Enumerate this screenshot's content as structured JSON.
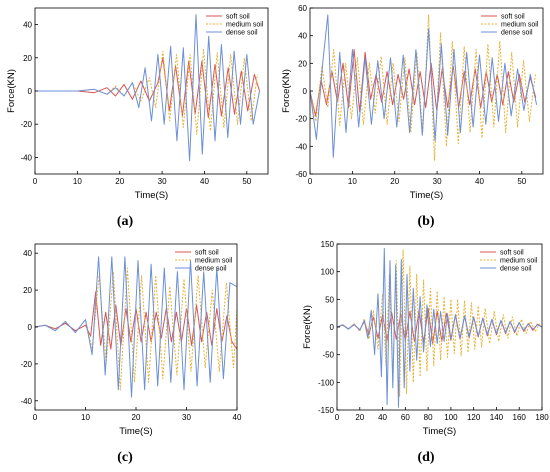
{
  "chart_data": [
    {
      "id": "a",
      "type": "line",
      "panel_label": "(a)",
      "xlabel": "Time(S)",
      "ylabel": "Force(KN)",
      "xlim": [
        0,
        55
      ],
      "ylim": [
        -50,
        50
      ],
      "xticks": [
        0,
        10,
        20,
        30,
        40,
        50
      ],
      "yticks": [
        -40,
        -20,
        0,
        20,
        40
      ],
      "legend_position": "top-right",
      "series": [
        {
          "name": "soft soil",
          "color": "#d9534f",
          "dash": "solid",
          "x": [
            0,
            10,
            14,
            17,
            19,
            21,
            23,
            25,
            27,
            29,
            30.2,
            31.7,
            33.2,
            34.8,
            36.3,
            37.8,
            39.4,
            40.9,
            42.5,
            44,
            45.6,
            47.1,
            48.7,
            50.2,
            51.8,
            53
          ],
          "y": [
            0,
            0,
            -1,
            2,
            -3,
            4,
            -5,
            6,
            -6,
            5,
            20,
            -12,
            15,
            -15,
            18,
            -14,
            18,
            -16,
            16,
            -15,
            14,
            -14,
            12,
            -12,
            10,
            0
          ]
        },
        {
          "name": "medium soil",
          "color": "#e8b030",
          "dash": "dashed",
          "x": [
            0,
            10,
            14,
            17,
            19,
            21,
            23,
            25,
            27,
            28.5,
            30.2,
            31.8,
            33.4,
            35,
            36.6,
            38.2,
            39.8,
            41.4,
            43,
            44.6,
            46.2,
            47.8,
            49.4,
            51,
            52.5
          ],
          "y": [
            0,
            0,
            1,
            -2,
            3,
            -3,
            5,
            -6,
            8,
            -10,
            24,
            -18,
            22,
            -22,
            22,
            -26,
            25,
            -24,
            23,
            -22,
            22,
            -20,
            20,
            -18,
            10
          ]
        },
        {
          "name": "dense soil",
          "color": "#6b8fd8",
          "dash": "solid",
          "x": [
            0,
            10,
            14,
            17,
            19,
            21,
            23,
            24.5,
            26,
            27.5,
            29,
            30.5,
            32,
            33.5,
            35,
            36.5,
            38,
            39.5,
            41,
            42.5,
            44,
            45.5,
            47,
            48.5,
            50,
            51.5,
            53
          ],
          "y": [
            0,
            0,
            1,
            -2,
            2,
            -3,
            5,
            -10,
            14,
            -18,
            22,
            -20,
            27,
            -30,
            26,
            -42,
            46,
            -38,
            33,
            -30,
            28,
            -28,
            24,
            -20,
            22,
            -20,
            0
          ]
        }
      ]
    },
    {
      "id": "b",
      "type": "line",
      "panel_label": "(b)",
      "xlabel": "Time(S)",
      "ylabel": "Force(KN)",
      "xlim": [
        0,
        55
      ],
      "ylim": [
        -60,
        60
      ],
      "xticks": [
        0,
        10,
        20,
        30,
        40,
        50
      ],
      "yticks": [
        -60,
        -40,
        -20,
        0,
        20,
        40,
        60
      ],
      "legend_position": "top-right",
      "series": [
        {
          "name": "soft soil",
          "color": "#d9534f",
          "dash": "solid",
          "x": [
            0,
            1.3,
            2.6,
            3.9,
            5.2,
            6.5,
            7.8,
            9.1,
            10.4,
            11.7,
            13,
            14.3,
            15.6,
            16.9,
            18.2,
            19.5,
            20.8,
            22.1,
            23.4,
            24.7,
            26,
            27.3,
            28.6,
            29.9,
            31.2,
            32.5,
            33.8,
            35.1,
            36.4,
            37.7,
            39,
            40.3,
            41.6,
            42.9,
            44.2,
            45.5,
            46.8,
            48.1,
            49.4,
            50.7,
            52,
            53.3
          ],
          "y": [
            0,
            -18,
            8,
            -10,
            14,
            -8,
            20,
            -12,
            30,
            -15,
            28,
            -6,
            12,
            -8,
            14,
            -10,
            12,
            -6,
            16,
            -10,
            14,
            -12,
            20,
            -14,
            16,
            -12,
            18,
            -12,
            14,
            -10,
            16,
            -12,
            14,
            -8,
            12,
            -10,
            14,
            -8,
            12,
            -8,
            10,
            -5
          ]
        },
        {
          "name": "medium soil",
          "color": "#e8b030",
          "dash": "dashed",
          "x": [
            0,
            1.4,
            2.8,
            4.2,
            5.6,
            7,
            8.4,
            9.8,
            11.2,
            12.6,
            14,
            15.4,
            16.8,
            18.2,
            19.6,
            21,
            22.4,
            23.8,
            25.2,
            26.6,
            28,
            29.4,
            30.8,
            32.2,
            33.6,
            35,
            36.4,
            37.8,
            39.2,
            40.6,
            42,
            43.4,
            44.8,
            46.2,
            47.6,
            49,
            50.4,
            51.8,
            53.2
          ],
          "y": [
            0,
            -22,
            18,
            -12,
            30,
            -25,
            20,
            -20,
            24,
            -24,
            20,
            -16,
            25,
            -24,
            20,
            -22,
            24,
            -30,
            28,
            -30,
            55,
            -50,
            42,
            -40,
            36,
            -38,
            32,
            -30,
            30,
            -34,
            34,
            -26,
            36,
            -30,
            28,
            -26,
            22,
            -22,
            12
          ]
        },
        {
          "name": "dense soil",
          "color": "#6b8fd8",
          "dash": "solid",
          "x": [
            0,
            1.5,
            3,
            4.2,
            5.5,
            7,
            8.5,
            10,
            11.5,
            13,
            14.5,
            16,
            17.5,
            19,
            20.5,
            22,
            23.5,
            25,
            26.5,
            28,
            29.5,
            31,
            32.5,
            34,
            35.5,
            37,
            38.5,
            40,
            41.5,
            43,
            44.5,
            46,
            47.5,
            49,
            50.5,
            52,
            53.5
          ],
          "y": [
            0,
            -35,
            20,
            55,
            -48,
            28,
            -30,
            30,
            -26,
            24,
            -24,
            22,
            -20,
            24,
            -26,
            26,
            -30,
            30,
            -32,
            45,
            -36,
            34,
            -32,
            30,
            -30,
            28,
            -26,
            26,
            -24,
            24,
            -22,
            20,
            -18,
            16,
            -14,
            12,
            -10
          ]
        }
      ]
    },
    {
      "id": "c",
      "type": "line",
      "panel_label": "(c)",
      "xlabel": "Time(S)",
      "ylabel": "",
      "xlim": [
        0,
        40
      ],
      "ylim": [
        -45,
        45
      ],
      "xticks": [
        0,
        10,
        20,
        30,
        40
      ],
      "yticks": [
        -40,
        -20,
        0,
        20,
        40
      ],
      "legend_position": "top-right",
      "series": [
        {
          "name": "soft soil",
          "color": "#d9534f",
          "dash": "solid",
          "x": [
            0,
            2,
            4,
            6,
            8,
            10,
            11,
            12,
            13,
            14,
            15,
            16,
            17,
            18,
            19,
            20,
            21,
            22,
            23,
            24,
            25,
            26,
            27,
            28,
            29,
            30,
            31,
            32,
            33,
            34,
            35,
            36,
            37,
            38,
            39,
            40
          ],
          "y": [
            0,
            1,
            -1,
            2,
            -2,
            1,
            -5,
            19,
            -10,
            8,
            -12,
            12,
            -10,
            10,
            -8,
            10,
            -8,
            8,
            -8,
            8,
            -6,
            10,
            -8,
            8,
            -8,
            10,
            -10,
            12,
            -8,
            8,
            -10,
            10,
            -8,
            6,
            -8,
            -12
          ]
        },
        {
          "name": "medium soil",
          "color": "#e8b030",
          "dash": "dashed",
          "x": [
            0,
            2,
            4,
            6,
            8,
            10,
            11.3,
            12.7,
            14.1,
            15.5,
            16.9,
            18.3,
            19.7,
            21.1,
            22.5,
            23.9,
            25.3,
            26.7,
            28.1,
            29.5,
            30.9,
            32.3,
            33.7,
            35.1,
            36.5,
            37.9,
            39.3,
            40
          ],
          "y": [
            0,
            1,
            -2,
            3,
            -3,
            4,
            -12,
            28,
            -20,
            30,
            -34,
            32,
            -30,
            28,
            -30,
            28,
            -28,
            22,
            -26,
            26,
            -24,
            28,
            -22,
            20,
            -24,
            24,
            -22,
            10
          ]
        },
        {
          "name": "dense soil",
          "color": "#6b8fd8",
          "dash": "solid",
          "x": [
            0,
            2,
            4,
            6,
            8,
            10,
            11.3,
            12.6,
            13.9,
            15.2,
            16.5,
            17.8,
            19.1,
            20.4,
            21.7,
            23,
            24.3,
            25.6,
            26.9,
            28.2,
            29.5,
            30.8,
            32.1,
            33.4,
            34.7,
            36,
            37.3,
            38.6,
            39.9
          ],
          "y": [
            0,
            1,
            -2,
            3,
            -3,
            4,
            -15,
            38,
            -26,
            38,
            -34,
            38,
            -38,
            36,
            -34,
            34,
            -32,
            32,
            -30,
            30,
            -34,
            36,
            -32,
            30,
            -30,
            32,
            -28,
            24,
            22
          ]
        }
      ]
    },
    {
      "id": "d",
      "type": "line",
      "panel_label": "(d)",
      "xlabel": "Time(S)",
      "ylabel": "Force(KN)",
      "xlim": [
        0,
        180
      ],
      "ylim": [
        -150,
        150
      ],
      "xticks": [
        0,
        20,
        40,
        60,
        80,
        100,
        120,
        140,
        160,
        180
      ],
      "yticks": [
        -150,
        -100,
        -50,
        0,
        50,
        100,
        150
      ],
      "legend_position": "top-right",
      "series": [
        {
          "name": "soft soil",
          "color": "#d9534f",
          "dash": "solid",
          "x": [
            0,
            5,
            10,
            15,
            20,
            24,
            28,
            32,
            36,
            40,
            44,
            48,
            52,
            56,
            60,
            64,
            68,
            72,
            76,
            80,
            84,
            88,
            92,
            96,
            100,
            104,
            108,
            112,
            116,
            120,
            124,
            128,
            132,
            136,
            140,
            144,
            148,
            152,
            156,
            160,
            164,
            168,
            172,
            176,
            180
          ],
          "y": [
            0,
            3,
            -3,
            4,
            -5,
            10,
            -14,
            18,
            -20,
            22,
            -24,
            26,
            -22,
            24,
            -25,
            28,
            -26,
            30,
            -28,
            34,
            -30,
            28,
            -26,
            25,
            -24,
            22,
            -22,
            20,
            -20,
            18,
            -18,
            16,
            -16,
            14,
            -14,
            12,
            -12,
            10,
            -10,
            8,
            -8,
            6,
            -6,
            5,
            0
          ]
        },
        {
          "name": "medium soil",
          "color": "#e8b030",
          "dash": "dashed",
          "x": [
            0,
            5,
            10,
            15,
            20,
            24,
            28,
            32,
            36,
            40,
            43,
            46,
            49,
            52,
            55,
            58,
            61,
            64,
            67,
            70,
            73,
            76,
            79,
            82,
            85,
            88,
            91,
            94,
            97,
            100,
            103,
            106,
            109,
            112,
            115,
            118,
            121,
            124,
            127,
            130,
            134,
            138,
            142,
            146,
            150,
            154,
            158,
            162,
            166,
            170,
            174,
            178
          ],
          "y": [
            0,
            4,
            -4,
            6,
            -8,
            15,
            -22,
            30,
            -40,
            60,
            -70,
            95,
            -100,
            120,
            -125,
            140,
            -120,
            110,
            -100,
            95,
            -90,
            85,
            -80,
            70,
            -70,
            65,
            -60,
            55,
            -55,
            50,
            -48,
            50,
            -52,
            48,
            -46,
            44,
            -40,
            38,
            -36,
            34,
            -30,
            28,
            -26,
            22,
            -20,
            18,
            -16,
            14,
            -12,
            10,
            -8,
            6
          ]
        },
        {
          "name": "dense soil",
          "color": "#6b8fd8",
          "dash": "solid",
          "x": [
            0,
            5,
            10,
            15,
            20,
            24,
            27,
            30,
            33,
            36,
            39,
            41.5,
            44,
            46.5,
            49,
            51.5,
            54,
            56.5,
            59,
            61.5,
            64,
            67,
            70,
            73,
            76,
            79,
            82,
            85,
            88,
            91,
            94,
            97,
            100,
            104,
            108,
            112,
            116,
            120,
            124,
            128,
            132,
            136,
            140,
            144,
            148,
            152,
            156,
            160,
            164,
            168,
            172,
            176,
            180
          ],
          "y": [
            0,
            4,
            -4,
            5,
            -6,
            12,
            -20,
            30,
            -50,
            60,
            -90,
            142,
            -140,
            120,
            -110,
            112,
            -145,
            122,
            -110,
            95,
            -80,
            70,
            -60,
            55,
            -45,
            40,
            -35,
            32,
            -30,
            28,
            -26,
            24,
            -22,
            22,
            -20,
            20,
            -18,
            18,
            -16,
            16,
            -14,
            14,
            -12,
            12,
            -10,
            10,
            -8,
            8,
            -6,
            6,
            -4,
            4,
            0
          ]
        }
      ]
    }
  ]
}
